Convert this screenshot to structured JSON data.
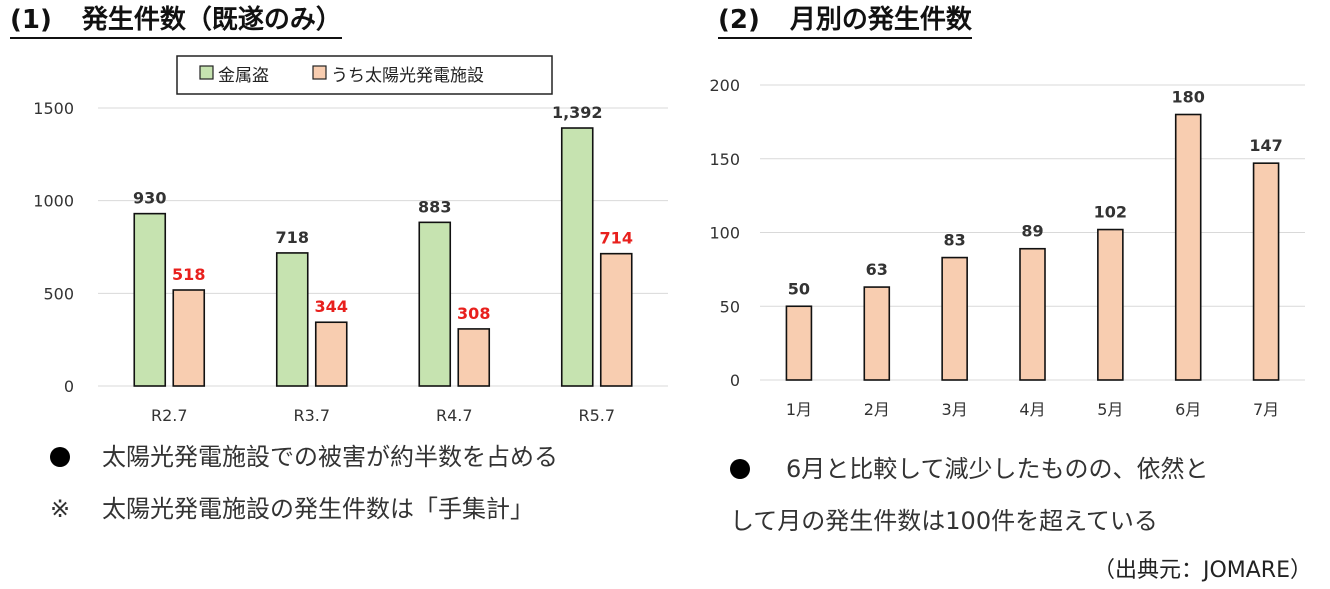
{
  "titles": {
    "left_num": "(1)",
    "left_text": "発生件数（既遂のみ）",
    "right_num": "(2)",
    "right_text": "月別の発生件数"
  },
  "colors": {
    "green": "#c6e3b0",
    "orange": "#f8cdb0",
    "bar_stroke": "#111111",
    "highlight_label": "#e8201d",
    "grid": "#d9d9d9"
  },
  "chart_data": [
    {
      "type": "bar",
      "categories": [
        "R2.7",
        "R3.7",
        "R4.7",
        "R5.7"
      ],
      "series": [
        {
          "name": "金属盗",
          "values": [
            930,
            718,
            883,
            1392
          ],
          "labels": [
            "930",
            "718",
            "883",
            "1,392"
          ]
        },
        {
          "name": "うち太陽光発電施設",
          "values": [
            518,
            344,
            308,
            714
          ],
          "labels": [
            "518",
            "344",
            "308",
            "714"
          ]
        }
      ],
      "yticks": [
        "0",
        "500",
        "1000",
        "1500"
      ],
      "ylim": [
        0,
        1500
      ],
      "legend": "top-center",
      "grid": true
    },
    {
      "type": "bar",
      "categories": [
        "1月",
        "2月",
        "3月",
        "4月",
        "5月",
        "6月",
        "7月"
      ],
      "series": [
        {
          "values": [
            50,
            63,
            83,
            89,
            102,
            180,
            147
          ]
        }
      ],
      "yticks": [
        "0",
        "50",
        "100",
        "150",
        "200"
      ],
      "ylim": [
        0,
        200
      ],
      "grid": true
    }
  ],
  "notes": {
    "left1_text": "太陽光発電施設での被害が約半数を占める",
    "left2_mark": "※",
    "left2_text": "太陽光発電施設の発生件数は「手集計」",
    "right_line1": "6月と比較して減少したものの、依然と",
    "right_line2": "して月の発生件数は100件を超えている"
  },
  "source": "（出典元：JOMARE）"
}
